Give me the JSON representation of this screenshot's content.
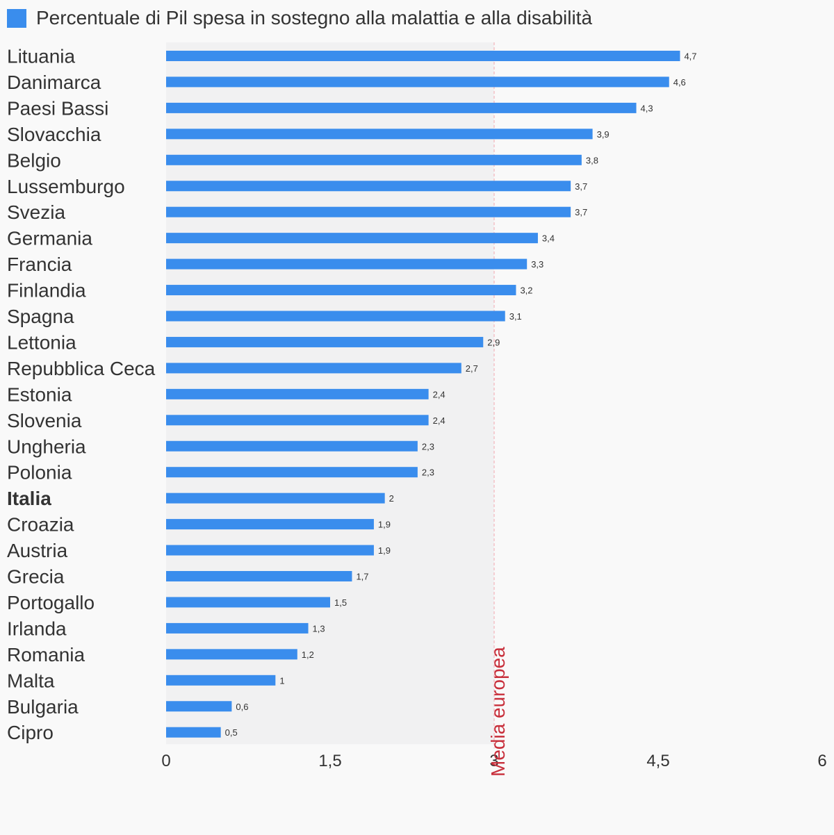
{
  "legend": {
    "label": "Percentuale di Pil spesa in sostegno alla malattia e alla disabilità",
    "color": "#3a8ded"
  },
  "chart_data": {
    "type": "bar",
    "orientation": "horizontal",
    "title": "",
    "xlabel": "",
    "ylabel": "",
    "xlim": [
      0,
      6
    ],
    "xticks": [
      "0",
      "1,5",
      "3",
      "4,5",
      "6"
    ],
    "xtick_values": [
      0,
      1.5,
      3,
      4.5,
      6
    ],
    "highlight_category": "Italia",
    "categories": [
      "Lituania",
      "Danimarca",
      "Paesi Bassi",
      "Slovacchia",
      "Belgio",
      "Lussemburgo",
      "Svezia",
      "Germania",
      "Francia",
      "Finlandia",
      "Spagna",
      "Lettonia",
      "Repubblica Ceca",
      "Estonia",
      "Slovenia",
      "Ungheria",
      "Polonia",
      "Italia",
      "Croazia",
      "Austria",
      "Grecia",
      "Portogallo",
      "Irlanda",
      "Romania",
      "Malta",
      "Bulgaria",
      "Cipro"
    ],
    "series": [
      {
        "name": "Percentuale di Pil spesa in sostegno alla malattia e alla disabilità",
        "color": "#3a8ded",
        "values": [
          4.7,
          4.6,
          4.3,
          3.9,
          3.8,
          3.7,
          3.7,
          3.4,
          3.3,
          3.2,
          3.1,
          2.9,
          2.7,
          2.4,
          2.4,
          2.3,
          2.3,
          2,
          1.9,
          1.9,
          1.7,
          1.5,
          1.3,
          1.2,
          1,
          0.6,
          0.5
        ],
        "labels": [
          "4,7",
          "4,6",
          "4,3",
          "3,9",
          "3,8",
          "3,7",
          "3,7",
          "3,4",
          "3,3",
          "3,2",
          "3,1",
          "2,9",
          "2,7",
          "2,4",
          "2,4",
          "2,3",
          "2,3",
          "2",
          "1,9",
          "1,9",
          "1,7",
          "1,5",
          "1,3",
          "1,2",
          "1",
          "0,6",
          "0,5"
        ]
      }
    ],
    "reference_line": {
      "value": 3,
      "label": "Media europea",
      "color": "#c8303c",
      "shaded_region_color": "#f1f1f2"
    },
    "grid": false,
    "legend_position": "top-left"
  }
}
